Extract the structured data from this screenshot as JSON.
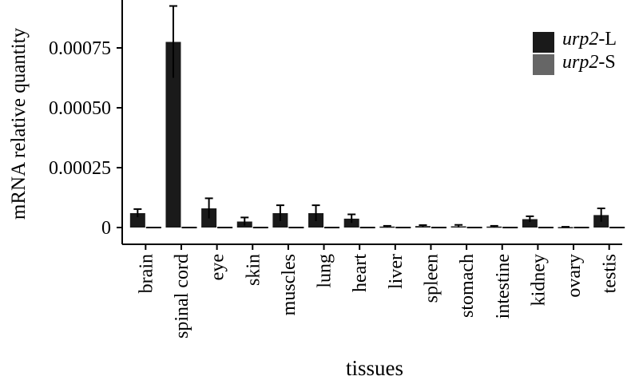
{
  "chart_data": {
    "type": "bar",
    "xlabel": "tissues",
    "ylabel": "mRNA relative quantity",
    "ylim": [
      -7e-05,
      0.00095
    ],
    "yticks": [
      0,
      0.00025,
      0.0005,
      0.00075
    ],
    "ytick_labels": [
      "0",
      "0.00025",
      "0.00050",
      "0.00075"
    ],
    "categories": [
      "brain",
      "spinal cord",
      "eye",
      "skin",
      "muscles",
      "lung",
      "heart",
      "liver",
      "spleen",
      "stomach",
      "intestine",
      "kidney",
      "ovary",
      "testis"
    ],
    "series": [
      {
        "name": "urp2-L",
        "name_italic": "urp2",
        "name_suffix": "-L",
        "color": "#1a1a1a",
        "values": [
          6e-05,
          0.000775,
          8e-05,
          2.5e-05,
          6e-05,
          6e-05,
          3.7e-05,
          4e-06,
          6e-06,
          5e-06,
          4e-06,
          3.5e-05,
          2e-06,
          5.2e-05
        ],
        "errors": [
          1.7e-05,
          0.00015,
          4.2e-05,
          1.7e-05,
          3.3e-05,
          3.3e-05,
          1.8e-05,
          3e-06,
          4e-06,
          6e-06,
          3e-06,
          1.2e-05,
          1e-06,
          2.8e-05
        ]
      },
      {
        "name": "urp2-S",
        "name_italic": "urp2",
        "name_suffix": "-S",
        "color": "#666666",
        "values": [
          0,
          0,
          0,
          0,
          0,
          0,
          0,
          0,
          0,
          0,
          0,
          0,
          0,
          0
        ],
        "errors": [
          0,
          0,
          0,
          0,
          0,
          0,
          0,
          0,
          0,
          0,
          0,
          0,
          0,
          0
        ]
      }
    ],
    "legend_position": "top-right",
    "grid": false
  }
}
